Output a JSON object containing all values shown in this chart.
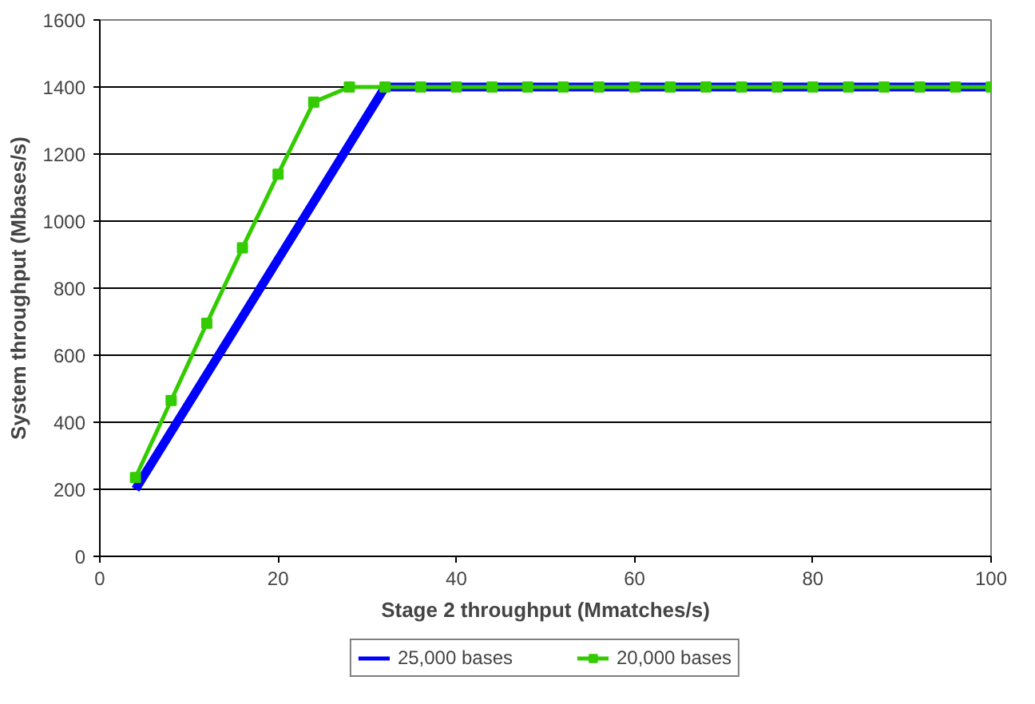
{
  "chart_data": {
    "type": "line",
    "xlabel": "Stage 2 throughput (Mmatches/s)",
    "ylabel": "System throughput (Mbases/s)",
    "xlim": [
      0,
      100
    ],
    "xticks": [
      0,
      20,
      40,
      60,
      80,
      100
    ],
    "ylim": [
      0,
      1600
    ],
    "yticks": [
      0,
      200,
      400,
      600,
      800,
      1000,
      1200,
      1400,
      1600
    ],
    "grid": "y",
    "legend": "bottom",
    "series": [
      {
        "name": "25,000 bases",
        "color": "#0000ff",
        "marker": "none",
        "x": [
          4,
          32,
          100
        ],
        "values": [
          200,
          1400,
          1400
        ]
      },
      {
        "name": "20,000 bases",
        "color": "#33cc00",
        "marker": "square",
        "x": [
          4,
          8,
          12,
          16,
          20,
          24,
          28,
          32,
          36,
          40,
          44,
          48,
          52,
          56,
          60,
          64,
          68,
          72,
          76,
          80,
          84,
          88,
          92,
          96,
          100
        ],
        "values": [
          235,
          465,
          695,
          920,
          1140,
          1355,
          1400,
          1400,
          1400,
          1400,
          1400,
          1400,
          1400,
          1400,
          1400,
          1400,
          1400,
          1400,
          1400,
          1400,
          1400,
          1400,
          1400,
          1400,
          1400
        ]
      }
    ]
  }
}
